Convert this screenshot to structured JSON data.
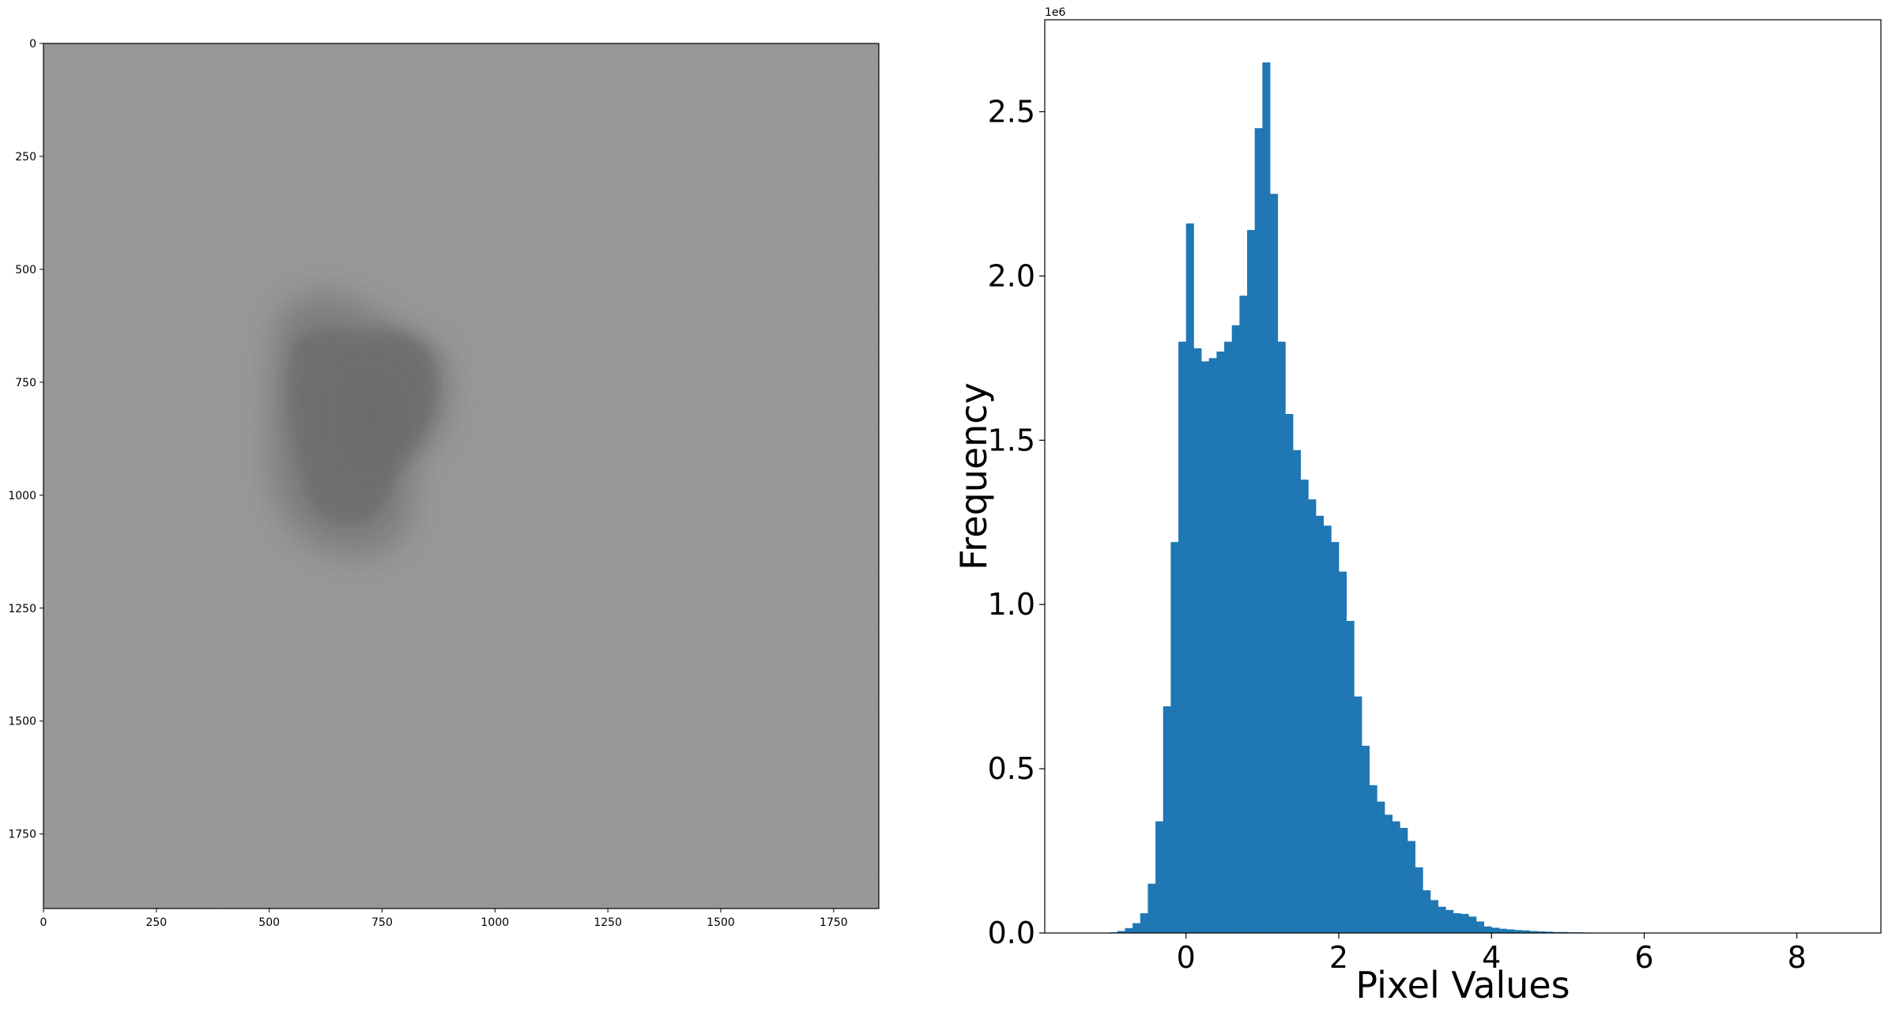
{
  "chart_data": [
    {
      "type": "image",
      "xlim": [
        0,
        1850
      ],
      "ylim": [
        1915,
        0
      ],
      "xticks": [
        0,
        250,
        500,
        750,
        1000,
        1250,
        1500,
        1750
      ],
      "yticks": [
        0,
        250,
        500,
        750,
        1000,
        1250,
        1500,
        1750
      ],
      "xtick_labels": [
        "0",
        "250",
        "500",
        "750",
        "1000",
        "1250",
        "1500",
        "1750"
      ],
      "ytick_labels": [
        "0",
        "250",
        "500",
        "750",
        "1000",
        "1250",
        "1500",
        "1750"
      ],
      "colormap": "gray",
      "background_color": "#656565",
      "blob_color": "#262626"
    },
    {
      "type": "bar",
      "title": "",
      "xlabel": "Pixel Values",
      "ylabel": "Frequency",
      "offset_text": "1e6",
      "bar_color": "#1f77b4",
      "xlim": [
        -1.85,
        9.1
      ],
      "ylim": [
        0,
        2.78
      ],
      "xticks": [
        0,
        2,
        4,
        6,
        8
      ],
      "xtick_labels": [
        "0",
        "2",
        "4",
        "6",
        "8"
      ],
      "yticks": [
        0.0,
        0.5,
        1.0,
        1.5,
        2.0,
        2.5
      ],
      "ytick_labels": [
        "0.0",
        "0.5",
        "1.0",
        "1.5",
        "2.0",
        "2.5"
      ],
      "bins": {
        "start": -1.1,
        "width": 0.1,
        "values": [
          0.0,
          0.002,
          0.006,
          0.015,
          0.03,
          0.06,
          0.15,
          0.34,
          0.69,
          1.19,
          1.8,
          2.16,
          1.78,
          1.74,
          1.75,
          1.77,
          1.8,
          1.85,
          1.94,
          2.14,
          2.45,
          2.65,
          2.25,
          1.8,
          1.58,
          1.47,
          1.38,
          1.32,
          1.27,
          1.24,
          1.19,
          1.1,
          0.95,
          0.72,
          0.57,
          0.45,
          0.4,
          0.36,
          0.34,
          0.32,
          0.28,
          0.2,
          0.13,
          0.1,
          0.08,
          0.07,
          0.06,
          0.058,
          0.05,
          0.035,
          0.02,
          0.016,
          0.013,
          0.011,
          0.009,
          0.008,
          0.006,
          0.005,
          0.004,
          0.003,
          0.003,
          0.002,
          0.002,
          0.0015,
          0.0012,
          0.001,
          0.0008,
          0.0006,
          0.0005,
          0.0004,
          0.0003,
          0.0003,
          0.0002,
          0.0002,
          0.0002,
          0.0001,
          0.0001,
          0.0001,
          0.0001,
          0.0001,
          0.0001,
          0.0001,
          0.0001,
          0.0001,
          0.0001,
          0.0001,
          0.0001,
          0.0001,
          0.0001,
          0.0001,
          0.0001,
          0.0001,
          0.0001,
          0.0001,
          0.0001,
          0.0001,
          0.0001
        ]
      }
    }
  ]
}
